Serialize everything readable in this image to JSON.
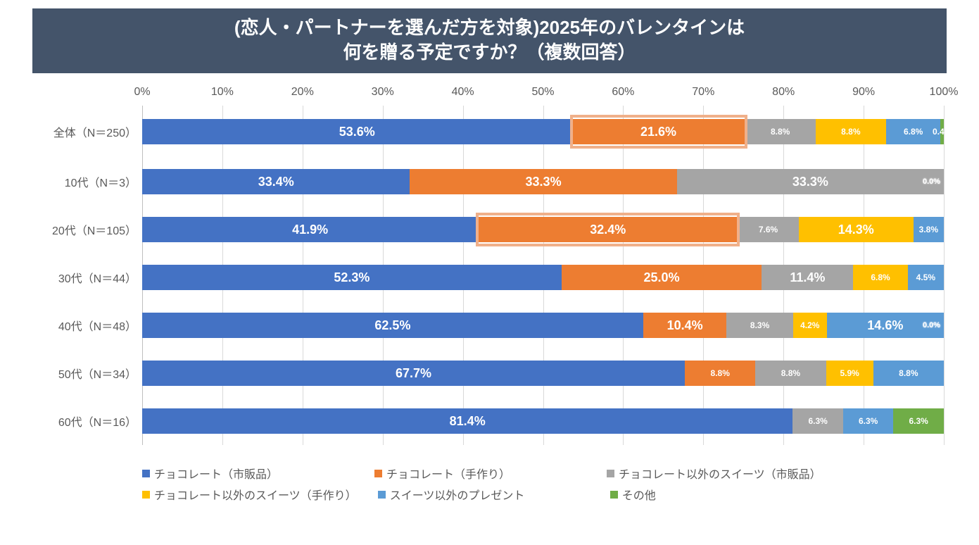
{
  "title_line1": "(恋人・パートナーを選んだ方を対象)2025年のバレンタインは",
  "title_line2": "何を贈る予定ですか？（複数回答）",
  "title_band_bg": "#44546a",
  "title_fontsize": 26,
  "axis": {
    "min": 0,
    "max": 100,
    "step": 10,
    "ticks": [
      "0%",
      "10%",
      "20%",
      "30%",
      "40%",
      "50%",
      "60%",
      "70%",
      "80%",
      "90%",
      "100%"
    ],
    "grid_color": "#d9d9d9",
    "axis_color": "#bfbfbf",
    "label_color": "#595959"
  },
  "series": [
    {
      "name": "チョコレート（市販品）",
      "color": "#4472c4"
    },
    {
      "name": "チョコレート（手作り）",
      "color": "#ed7d31"
    },
    {
      "name": "チョコレート以外のスイーツ（市販品）",
      "color": "#a5a5a5"
    },
    {
      "name": "チョコレート以外のスイーツ（手作り）",
      "color": "#ffc000"
    },
    {
      "name": "スイーツ以外のプレゼント",
      "color": "#5b9bd5"
    },
    {
      "name": "その他",
      "color": "#70ad47"
    }
  ],
  "label_text_color_light": "#ffffff",
  "label_text_color_dark": "#595959",
  "segment_label_fontsize_large": 18,
  "segment_label_fontsize_small": 12,
  "rows": [
    {
      "label": "全体（N＝250）",
      "values": [
        53.6,
        21.6,
        8.8,
        8.8,
        6.8,
        0.4
      ],
      "highlight_series": 1
    },
    {
      "label": "10代（N＝3）",
      "values": [
        33.4,
        33.3,
        33.3,
        0.0,
        0.0,
        0.0
      ]
    },
    {
      "label": "20代（N＝105）",
      "values": [
        41.9,
        32.4,
        7.6,
        14.3,
        3.8,
        0.0
      ],
      "highlight_series": 1,
      "hide_last_label": true
    },
    {
      "label": "30代（N＝44）",
      "values": [
        52.3,
        25.0,
        11.4,
        6.8,
        4.5,
        0.0
      ],
      "hide_last_label": true
    },
    {
      "label": "40代（N＝48）",
      "values": [
        62.5,
        10.4,
        8.3,
        4.2,
        14.6,
        0.0
      ]
    },
    {
      "label": "50代（N＝34）",
      "values": [
        67.7,
        8.8,
        8.8,
        5.9,
        8.8,
        0.0
      ],
      "hide_last_label": true
    },
    {
      "label": "60代（N＝16）",
      "values": [
        81.4,
        0.0,
        6.3,
        0.0,
        6.3,
        6.3
      ],
      "hide_last_label": false
    }
  ],
  "small_label_threshold": 9.5,
  "background_color": "#ffffff"
}
